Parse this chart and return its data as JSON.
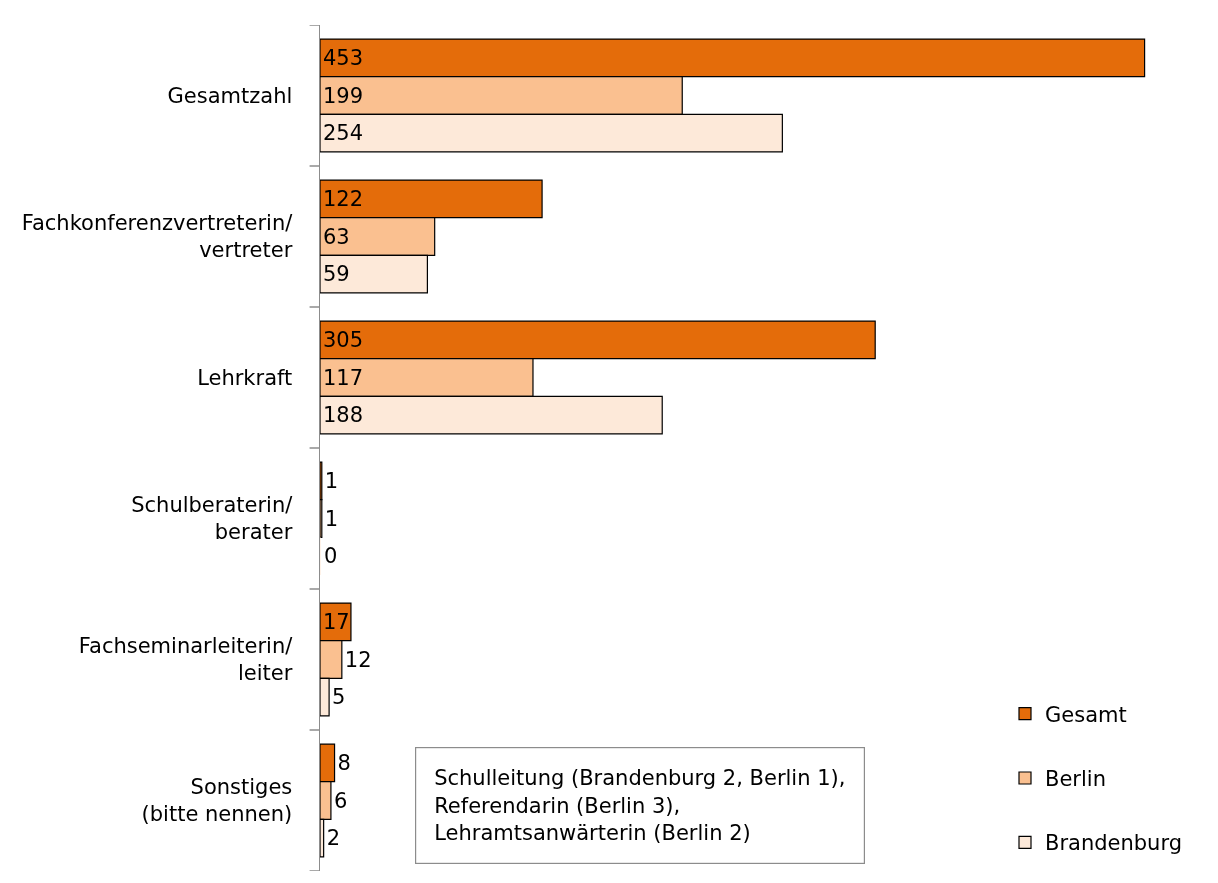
{
  "chart_data": {
    "type": "bar",
    "orientation": "horizontal",
    "categories": [
      "Gesamtzahl",
      "Fachkonferenzvertreterin/\nvertreter",
      "Lehrkraft",
      "Schulberaterin/\nberater",
      "Fachseminarleiterin/\nleiter",
      "Sonstiges\n(bitte nennen)"
    ],
    "series": [
      {
        "name": "Gesamt",
        "color": "#e46c0a",
        "values": [
          453,
          122,
          305,
          1,
          17,
          8
        ]
      },
      {
        "name": "Berlin",
        "color": "#fac090",
        "values": [
          199,
          63,
          117,
          1,
          12,
          6
        ]
      },
      {
        "name": "Brandenburg",
        "color": "#fde9d9",
        "values": [
          254,
          59,
          188,
          0,
          5,
          2
        ]
      }
    ],
    "data_labels": true,
    "legend": "bottom right",
    "annotations": [
      "Schulleitung (Brandenburg 2, Berlin 1),\nReferendarin (Berlin 3),\nLehramtsanwärterin (Berlin 2)"
    ]
  }
}
